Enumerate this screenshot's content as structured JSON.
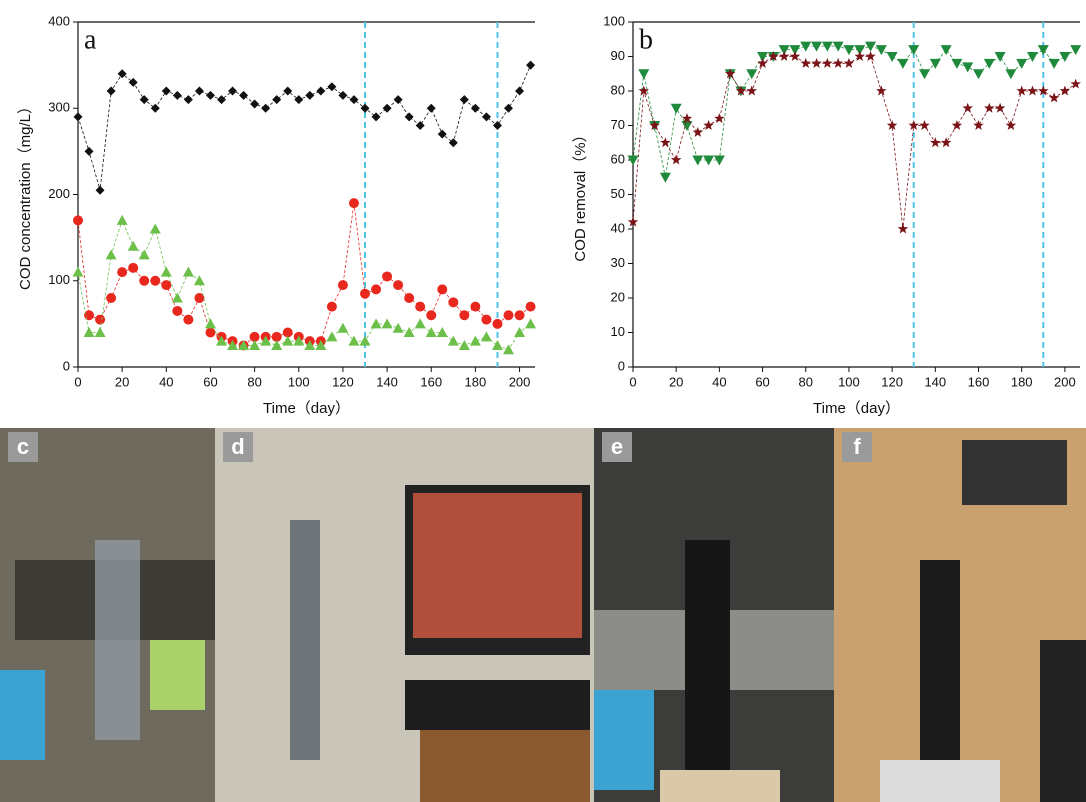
{
  "chart_data": [
    {
      "type": "scatter",
      "panel_label": "a",
      "x_label": "Time（day）",
      "y_label": "COD concentration（mg/L）",
      "xlim": [
        0,
        207
      ],
      "ylim": [
        0,
        400
      ],
      "xticks": [
        0,
        20,
        40,
        60,
        80,
        100,
        120,
        140,
        160,
        180,
        200
      ],
      "yticks": [
        0,
        100,
        200,
        300,
        400
      ],
      "reference_lines": [
        130,
        190
      ],
      "reference_color": "#4fc3e8",
      "x": [
        0,
        5,
        10,
        15,
        20,
        25,
        30,
        35,
        40,
        45,
        50,
        55,
        60,
        65,
        70,
        75,
        80,
        85,
        90,
        95,
        100,
        105,
        110,
        115,
        120,
        125,
        130,
        135,
        140,
        145,
        150,
        155,
        160,
        165,
        170,
        175,
        180,
        185,
        190,
        195,
        200,
        205
      ],
      "series": [
        {
          "color": "#111111",
          "marker": "diamond",
          "values": [
            290,
            250,
            205,
            320,
            340,
            330,
            310,
            300,
            320,
            315,
            310,
            320,
            315,
            310,
            320,
            315,
            305,
            300,
            310,
            320,
            310,
            315,
            320,
            325,
            315,
            310,
            300,
            290,
            300,
            310,
            290,
            280,
            300,
            270,
            260,
            310,
            300,
            290,
            280,
            300,
            320,
            350
          ]
        },
        {
          "color": "#e8281e",
          "marker": "circle",
          "values": [
            170,
            60,
            55,
            80,
            110,
            115,
            100,
            100,
            95,
            65,
            55,
            80,
            40,
            35,
            30,
            25,
            35,
            35,
            35,
            40,
            35,
            30,
            30,
            70,
            95,
            190,
            85,
            90,
            105,
            95,
            80,
            70,
            60,
            90,
            75,
            60,
            70,
            55,
            50,
            60,
            60,
            70
          ]
        },
        {
          "color": "#6cc04a",
          "marker": "triangle",
          "values": [
            110,
            40,
            40,
            130,
            170,
            140,
            130,
            160,
            110,
            80,
            110,
            100,
            50,
            30,
            25,
            25,
            25,
            30,
            25,
            30,
            30,
            25,
            25,
            35,
            45,
            30,
            30,
            50,
            50,
            45,
            40,
            50,
            40,
            40,
            30,
            25,
            30,
            35,
            25,
            20,
            40,
            50
          ]
        }
      ]
    },
    {
      "type": "scatter",
      "panel_label": "b",
      "x_label": "Time（day）",
      "y_label": "COD removal（%）",
      "xlim": [
        0,
        207
      ],
      "ylim": [
        0,
        100
      ],
      "xticks": [
        0,
        20,
        40,
        60,
        80,
        100,
        120,
        140,
        160,
        180,
        200
      ],
      "yticks": [
        0,
        10,
        20,
        30,
        40,
        50,
        60,
        70,
        80,
        90,
        100
      ],
      "reference_lines": [
        130,
        190
      ],
      "reference_color": "#4fc3e8",
      "x": [
        0,
        5,
        10,
        15,
        20,
        25,
        30,
        35,
        40,
        45,
        50,
        55,
        60,
        65,
        70,
        75,
        80,
        85,
        90,
        95,
        100,
        105,
        110,
        115,
        120,
        125,
        130,
        135,
        140,
        145,
        150,
        155,
        160,
        165,
        170,
        175,
        180,
        185,
        190,
        195,
        200,
        205
      ],
      "series": [
        {
          "color": "#1f8a3c",
          "marker": "triangle-down",
          "values": [
            60,
            85,
            70,
            55,
            75,
            70,
            60,
            60,
            60,
            85,
            80,
            85,
            90,
            90,
            92,
            92,
            93,
            93,
            93,
            93,
            92,
            92,
            93,
            92,
            90,
            88,
            92,
            85,
            88,
            92,
            88,
            87,
            85,
            88,
            90,
            85,
            88,
            90,
            92,
            88,
            90,
            92
          ]
        },
        {
          "color": "#7a1418",
          "marker": "star",
          "values": [
            42,
            80,
            70,
            65,
            60,
            72,
            68,
            70,
            72,
            85,
            80,
            80,
            88,
            90,
            90,
            90,
            88,
            88,
            88,
            88,
            88,
            90,
            90,
            80,
            70,
            40,
            70,
            70,
            65,
            65,
            70,
            75,
            70,
            75,
            75,
            70,
            80,
            80,
            80,
            78,
            80,
            82
          ]
        }
      ]
    }
  ],
  "photo_panels": [
    {
      "label": "c"
    },
    {
      "label": "d"
    },
    {
      "label": "e"
    },
    {
      "label": "f"
    }
  ]
}
